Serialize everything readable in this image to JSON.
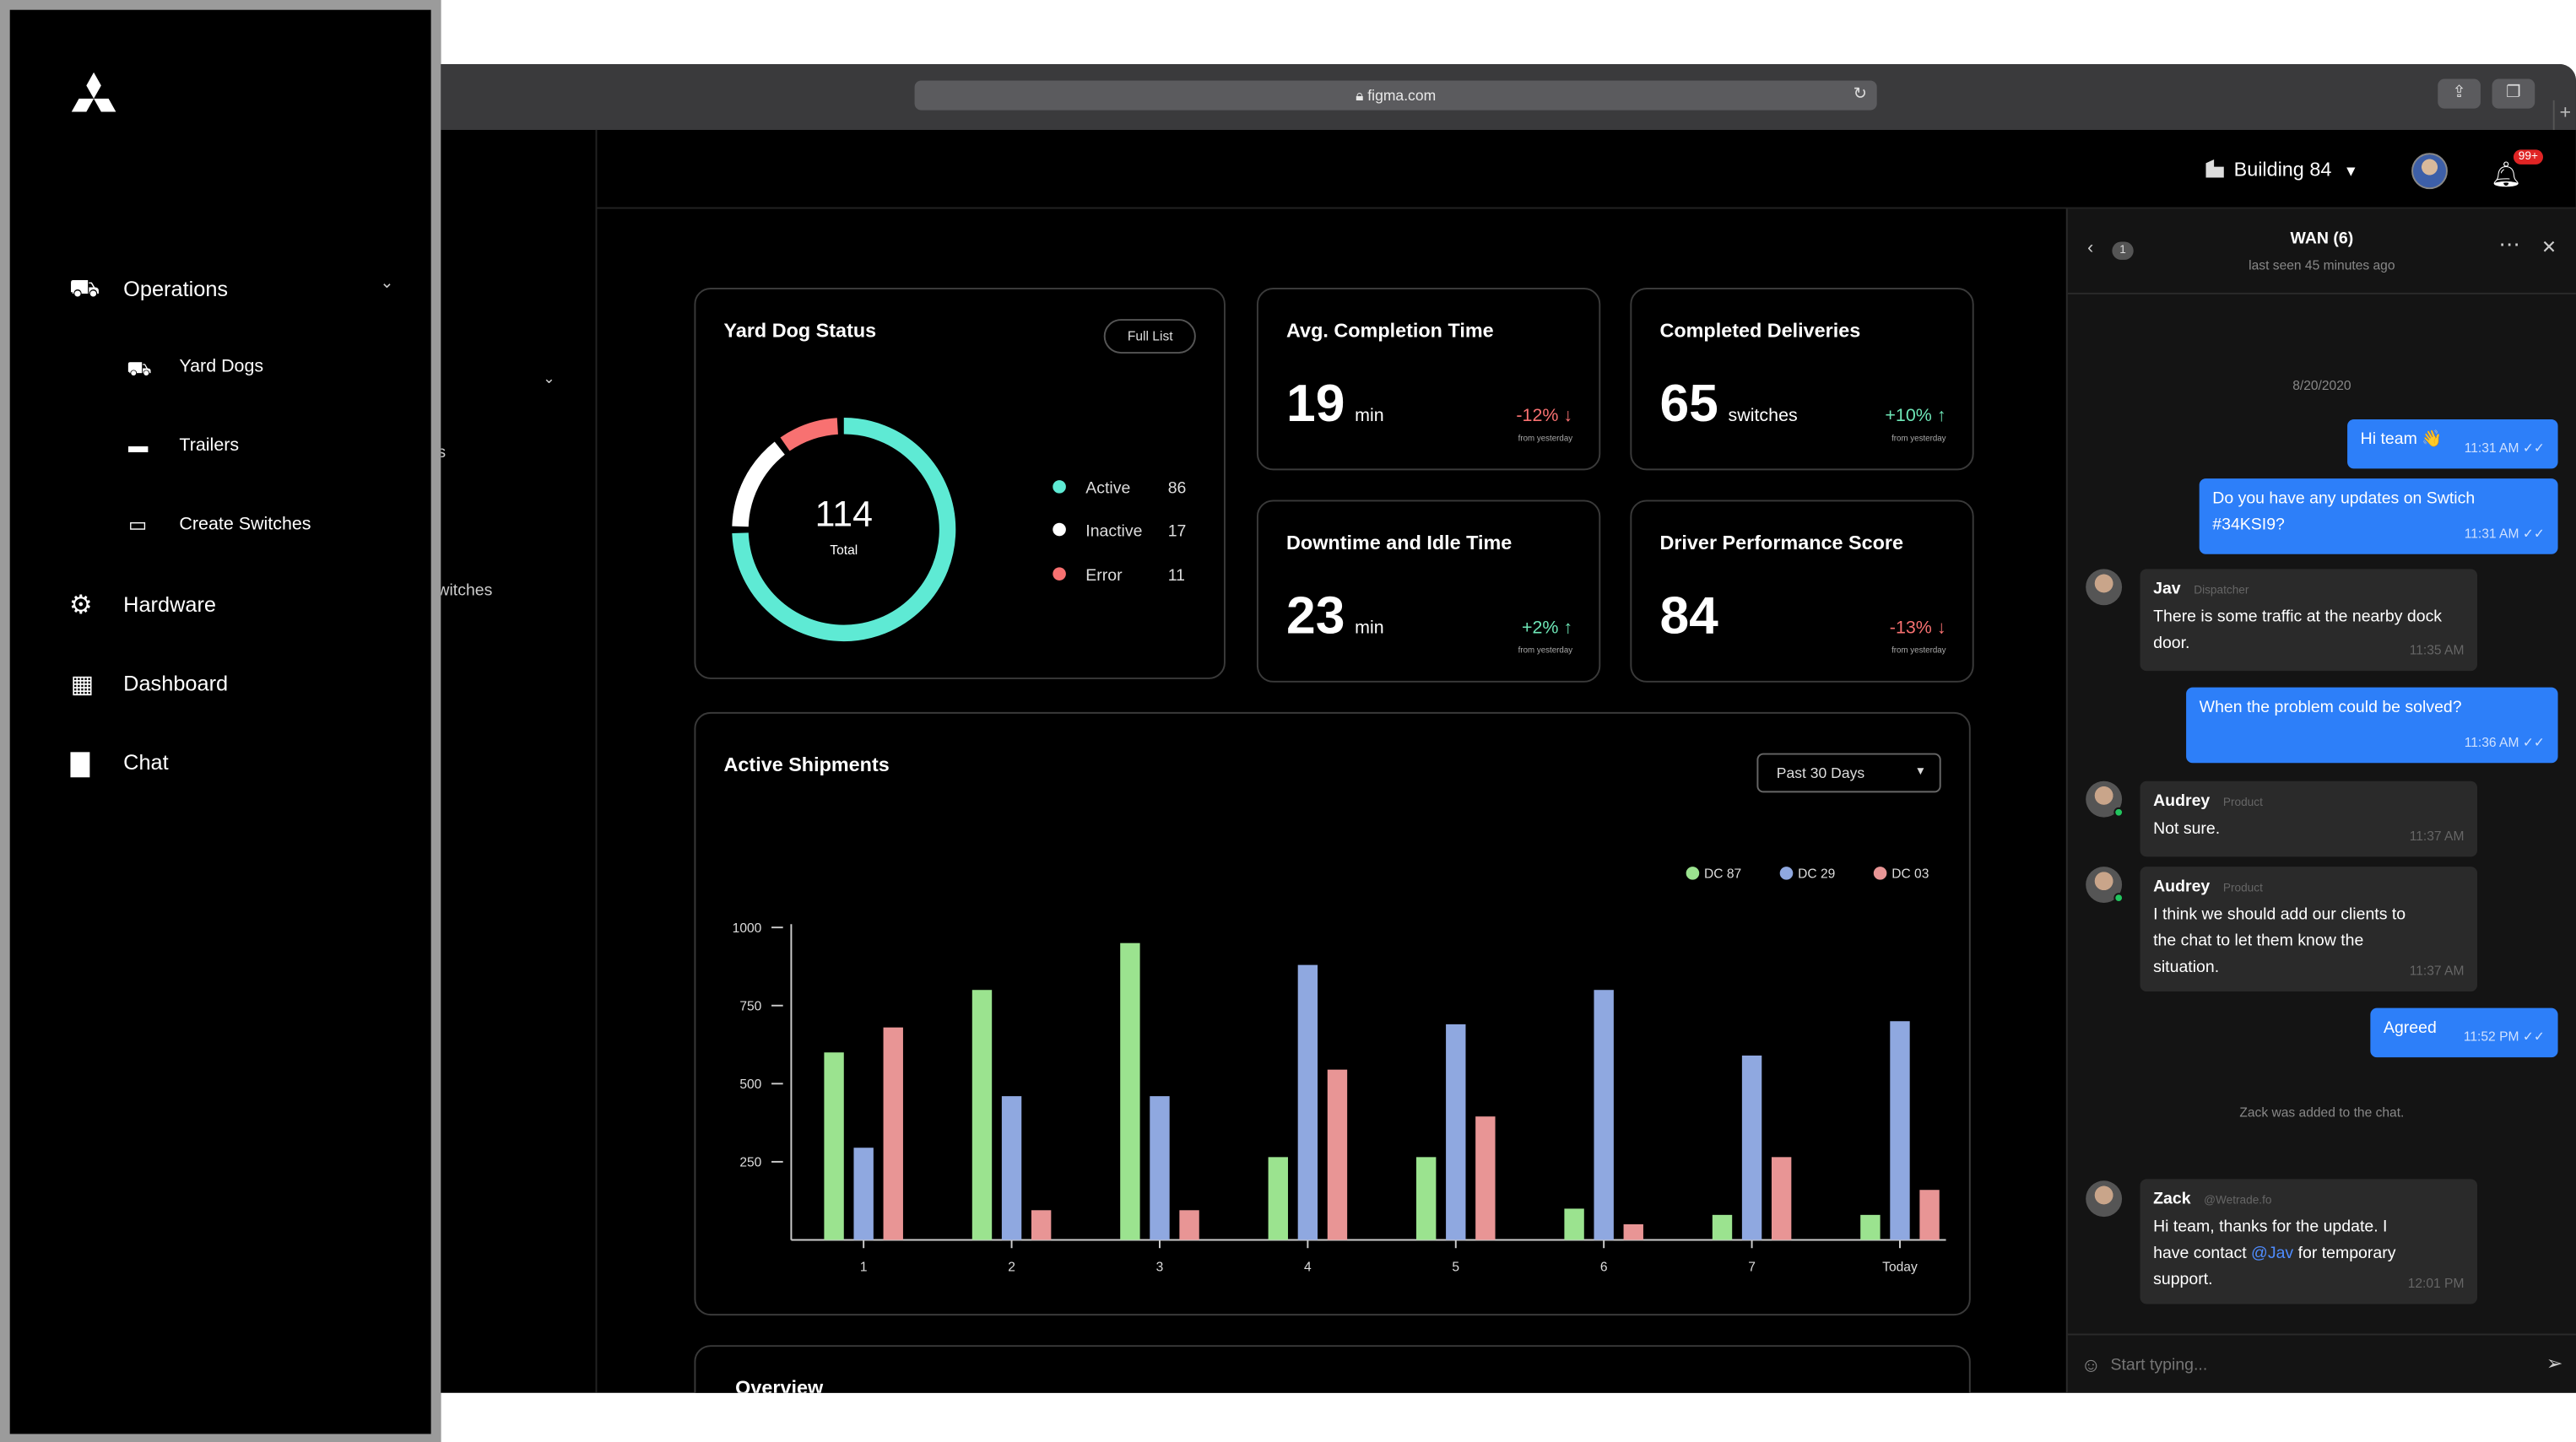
{
  "browser": {
    "url": "figma.com"
  },
  "header": {
    "building": "Building 84",
    "notifications": "99+"
  },
  "ghost_menu": {
    "item_a": "s",
    "item_b": "witches"
  },
  "sidebar": {
    "items": [
      {
        "label": "Operations"
      },
      {
        "label": "Yard Dogs"
      },
      {
        "label": "Trailers"
      },
      {
        "label": "Create Switches"
      },
      {
        "label": "Hardware"
      },
      {
        "label": "Dashboard"
      },
      {
        "label": "Chat"
      }
    ]
  },
  "yard_dog": {
    "title": "Yard Dog Status",
    "button": "Full List",
    "total": "114",
    "total_label": "Total",
    "legend": [
      {
        "label": "Active",
        "value": 86,
        "color": "#5eead4"
      },
      {
        "label": "Inactive",
        "value": 17,
        "color": "#ffffff"
      },
      {
        "label": "Error",
        "value": 11,
        "color": "#f87171"
      }
    ]
  },
  "stats": {
    "avg_completion": {
      "title": "Avg. Completion Time",
      "value": "19",
      "unit": "min",
      "delta": "-12%",
      "arrow": "↓",
      "note": "from yesterday"
    },
    "deliveries": {
      "title": "Completed Deliveries",
      "value": "65",
      "unit": "switches",
      "delta": "+10%",
      "arrow": "↑",
      "note": "from yesterday"
    },
    "downtime": {
      "title": "Downtime and Idle Time",
      "value": "23",
      "unit": "min",
      "delta": "+2%",
      "arrow": "↑",
      "note": "from yesterday"
    },
    "driver": {
      "title": "Driver Performance Score",
      "value": "84",
      "delta": "-13%",
      "arrow": "↓",
      "note": "from yesterday"
    }
  },
  "shipments": {
    "title": "Active Shipments",
    "range": "Past 30 Days"
  },
  "chart_data": {
    "type": "bar",
    "categories": [
      "1",
      "2",
      "3",
      "4",
      "5",
      "6",
      "7",
      "Today"
    ],
    "series": [
      {
        "name": "DC 87",
        "color": "#9be38f",
        "values": [
          600,
          800,
          950,
          265,
          265,
          100,
          80,
          80
        ]
      },
      {
        "name": "DC 29",
        "color": "#8fa8e0",
        "values": [
          295,
          460,
          460,
          880,
          690,
          800,
          590,
          700
        ]
      },
      {
        "name": "DC 03",
        "color": "#e89595",
        "values": [
          680,
          95,
          95,
          545,
          395,
          50,
          265,
          160
        ]
      }
    ],
    "yticks": [
      "250",
      "500",
      "750",
      "1000"
    ],
    "ylim": [
      0,
      1000
    ]
  },
  "overview": {
    "title": "Overview"
  },
  "chat": {
    "title": "WAN (6)",
    "subtitle": "last seen 45 minutes ago",
    "back_count": "1",
    "date": "8/20/2020",
    "m1": {
      "text": "Hi team 👋",
      "time": "11:31 AM"
    },
    "m2": {
      "text": "Do you have any updates on Swtich #34KSI9?",
      "time": "11:31 AM"
    },
    "m3": {
      "sender": "Jav",
      "role": "Dispatcher",
      "text": "There is some traffic at the nearby dock door.",
      "time": "11:35 AM"
    },
    "m4": {
      "text": "When the problem could be solved?",
      "time": "11:36 AM"
    },
    "m5": {
      "sender": "Audrey",
      "role": "Product",
      "text": "Not sure.",
      "time": "11:37 AM"
    },
    "m6": {
      "sender": "Audrey",
      "role": "Product",
      "text": "I think we should add our clients to the chat to let them know the situation.",
      "time": "11:37 AM"
    },
    "m7": {
      "text": "Agreed",
      "time": "11:52 PM"
    },
    "system": "Zack was added to the chat.",
    "m8": {
      "sender": "Zack",
      "role": "@Wetrade.fo",
      "text_a": "Hi team, thanks for the update. I have contact ",
      "mention": "@Jav",
      "text_b": " for temporary support.",
      "time": "12:01 PM"
    },
    "input_placeholder": "Start typing..."
  }
}
